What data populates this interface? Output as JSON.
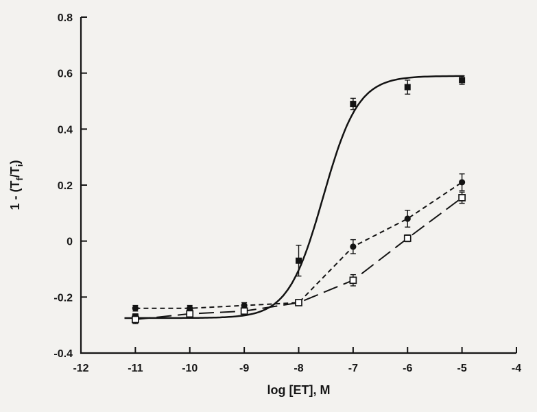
{
  "figure": {
    "background": "#f3f2ef"
  },
  "chart_data": {
    "type": "scatter",
    "title": "",
    "xlabel": "log [ET], M",
    "ylabel_plain": "1 - (Tf/Ti)",
    "ylabel_parts": [
      {
        "t": "1 - (T"
      },
      {
        "t": "f",
        "sub": true
      },
      {
        "t": "/T"
      },
      {
        "t": "i",
        "sub": true
      },
      {
        "t": ")"
      }
    ],
    "xlim": [
      -12,
      -4
    ],
    "ylim": [
      -0.4,
      0.8
    ],
    "xticks": [
      -12,
      -11,
      -10,
      -9,
      -8,
      -7,
      -6,
      -5,
      -4
    ],
    "xtick_labels": [
      "-12",
      "-11",
      "-10",
      "-9",
      "-8",
      "-7",
      "-6",
      "-5",
      "-4"
    ],
    "yticks": [
      -0.4,
      -0.2,
      0,
      0.2,
      0.4,
      0.6,
      0.8
    ],
    "ytick_labels": [
      "-0.4",
      "-0.2",
      "0",
      "0.2",
      "0.4",
      "0.6",
      "0.8"
    ],
    "grid": false,
    "legend": null,
    "axis_color": "#131313",
    "series": [
      {
        "name": "filled-square-solid-fit",
        "marker": "filled-square",
        "line": "solid-sigmoid-fit",
        "x": [
          -11,
          -10,
          -9,
          -8,
          -7,
          -6,
          -5
        ],
        "y": [
          -0.27,
          -0.25,
          -0.25,
          -0.07,
          0.49,
          0.55,
          0.575
        ],
        "err": [
          0.01,
          0.012,
          0.015,
          0.055,
          0.02,
          0.025,
          0.015
        ],
        "fit": {
          "model": "sigmoid",
          "bottom": -0.275,
          "top": 0.59,
          "logEC50": -7.55,
          "hill": 1.35
        }
      },
      {
        "name": "filled-circle-short-dash",
        "marker": "filled-circle",
        "line": "short-dash",
        "x": [
          -11,
          -10,
          -9,
          -8,
          -7,
          -6,
          -5
        ],
        "y": [
          -0.24,
          -0.24,
          -0.23,
          -0.22,
          -0.02,
          0.08,
          0.21
        ],
        "err": [
          0.01,
          0.01,
          0.01,
          0.01,
          0.025,
          0.03,
          0.03
        ]
      },
      {
        "name": "open-square-long-dash",
        "marker": "open-square",
        "line": "long-dash",
        "x": [
          -11,
          -10,
          -9,
          -8,
          -7,
          -6,
          -5
        ],
        "y": [
          -0.28,
          -0.26,
          -0.25,
          -0.22,
          -0.14,
          0.01,
          0.155
        ],
        "err": [
          0.015,
          0.01,
          0.01,
          0.01,
          0.02,
          0.012,
          0.02
        ]
      }
    ]
  }
}
